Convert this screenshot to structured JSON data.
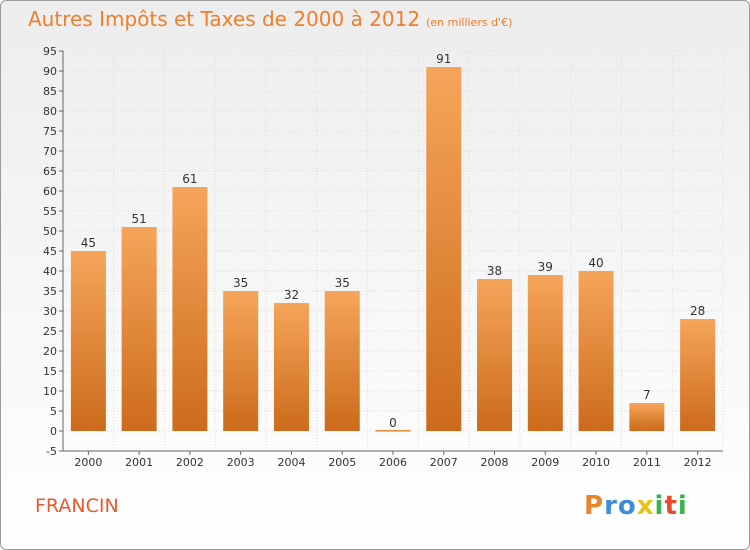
{
  "header": {
    "title": "Autres Impôts et Taxes de 2000 à 2012",
    "subtitle": "(en milliers d'€)"
  },
  "place": "FRANCIN",
  "logo": {
    "text": "Proxiti",
    "letters": [
      "P",
      "r",
      "o",
      "x",
      "i",
      "t",
      "i"
    ]
  },
  "colors": {
    "bar_top": "#f5a55a",
    "bar_bottom": "#cc6b1b",
    "title": "#f07e2a",
    "place": "#e65a2e"
  },
  "chart_data": {
    "type": "bar",
    "title": "Autres Impôts et Taxes de 2000 à 2012",
    "subtitle": "(en milliers d'€)",
    "categories": [
      "2000",
      "2001",
      "2002",
      "2003",
      "2004",
      "2005",
      "2006",
      "2007",
      "2008",
      "2009",
      "2010",
      "2011",
      "2012"
    ],
    "values": [
      45,
      51,
      61,
      35,
      32,
      35,
      0,
      91,
      38,
      39,
      40,
      7,
      28
    ],
    "ylim": [
      -5,
      95
    ],
    "yticks": [
      -5,
      0,
      5,
      10,
      15,
      20,
      25,
      30,
      35,
      40,
      45,
      50,
      55,
      60,
      65,
      70,
      75,
      80,
      85,
      90,
      95
    ],
    "grid": true
  }
}
